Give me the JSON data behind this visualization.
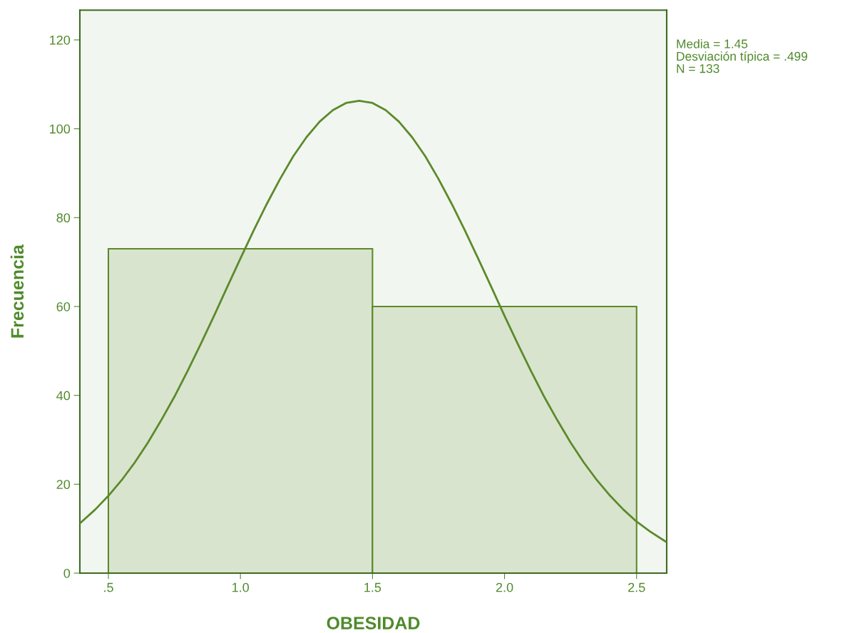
{
  "chart_data": {
    "type": "histogram",
    "xlabel": "OBESIDAD",
    "ylabel": "Frecuencia",
    "bins": [
      0.5,
      1.5,
      2.5
    ],
    "series": [
      {
        "values": [
          73,
          60
        ],
        "color": "#d9e4cf"
      },
      {
        "type": "line",
        "color": "#5b8a2b",
        "x": [
          0.392,
          0.45,
          0.5,
          0.55,
          0.6,
          0.65,
          0.7,
          0.75,
          0.8,
          0.85,
          0.9,
          0.95,
          1.0,
          1.05,
          1.1,
          1.15,
          1.2,
          1.25,
          1.3,
          1.35,
          1.4,
          1.45,
          1.5,
          1.55,
          1.6,
          1.65,
          1.7,
          1.75,
          1.8,
          1.85,
          1.9,
          1.95,
          2.0,
          2.05,
          2.1,
          2.15,
          2.2,
          2.25,
          2.3,
          2.35,
          2.4,
          2.45,
          2.5,
          2.55,
          2.61
        ],
        "values": [
          11.2,
          14.3,
          17.4,
          20.9,
          24.9,
          29.4,
          34.4,
          39.7,
          45.5,
          51.6,
          57.9,
          64.4,
          70.8,
          77.1,
          83.1,
          88.7,
          93.8,
          98.1,
          101.6,
          104.2,
          105.8,
          106.3,
          105.8,
          104.2,
          101.6,
          98.1,
          93.8,
          88.7,
          83.1,
          77.1,
          70.8,
          64.4,
          57.9,
          51.6,
          45.5,
          39.7,
          34.4,
          29.4,
          24.9,
          20.9,
          17.4,
          14.3,
          11.6,
          9.4,
          7.1
        ]
      }
    ],
    "xlim": [
      0.392,
      2.614
    ],
    "ylim": [
      0,
      126.7
    ],
    "xticks": [
      {
        "value": 0.5,
        "label": ".5"
      },
      {
        "value": 1.0,
        "label": "1.0"
      },
      {
        "value": 1.5,
        "label": "1.5"
      },
      {
        "value": 2.0,
        "label": "2.0"
      },
      {
        "value": 2.5,
        "label": "2.5"
      }
    ],
    "yticks": [
      0,
      20,
      40,
      60,
      80,
      100,
      120
    ],
    "annotations": [
      "Media = 1.45",
      "Desviación típica = .499",
      "N = 133"
    ]
  }
}
